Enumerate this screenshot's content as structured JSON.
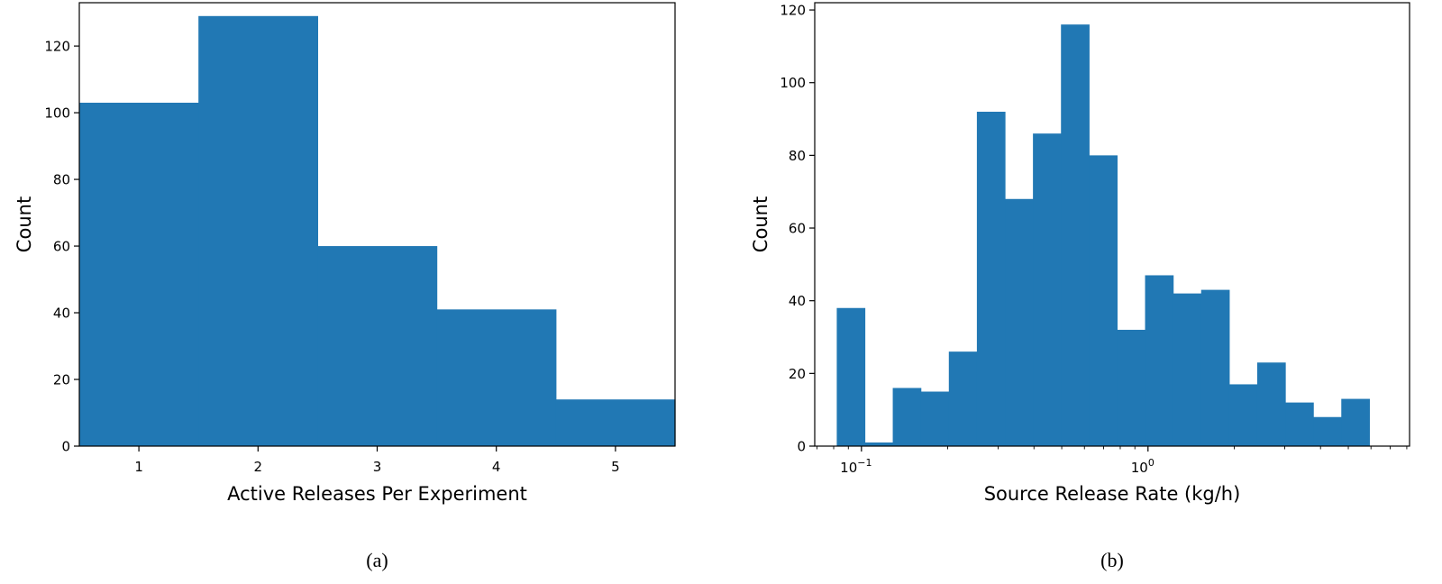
{
  "chart_data": [
    {
      "id": "a",
      "type": "bar",
      "title": "",
      "xlabel": "Active Releases Per Experiment",
      "ylabel": "Count",
      "caption": "(a)",
      "x_scale": "linear",
      "xlim": [
        0.5,
        5.5
      ],
      "ylim": [
        0,
        133
      ],
      "xticks": [
        1,
        2,
        3,
        4,
        5
      ],
      "xtick_labels": [
        "1",
        "2",
        "3",
        "4",
        "5"
      ],
      "yticks": [
        0,
        20,
        40,
        60,
        80,
        100,
        120
      ],
      "ytick_labels": [
        "0",
        "20",
        "40",
        "60",
        "80",
        "100",
        "120"
      ],
      "grid": false,
      "legend": "none",
      "color": "#2178b4",
      "bins": [
        {
          "x0": 0.5,
          "x1": 1.5,
          "value": 103
        },
        {
          "x0": 1.5,
          "x1": 2.5,
          "value": 129
        },
        {
          "x0": 2.5,
          "x1": 3.5,
          "value": 60
        },
        {
          "x0": 3.5,
          "x1": 4.5,
          "value": 41
        },
        {
          "x0": 4.5,
          "x1": 5.5,
          "value": 14
        }
      ]
    },
    {
      "id": "b",
      "type": "bar",
      "title": "",
      "xlabel": "Source Release Rate (kg/h)",
      "ylabel": "Count",
      "caption": "(b)",
      "x_scale": "log",
      "xlim": [
        0.0687,
        8.18
      ],
      "ylim": [
        0,
        122
      ],
      "xticks": [
        0.1,
        1
      ],
      "xtick_base": "10",
      "xtick_exponents": [
        "−1",
        "0"
      ],
      "yticks": [
        0,
        20,
        40,
        60,
        80,
        100,
        120
      ],
      "ytick_labels": [
        "0",
        "20",
        "40",
        "60",
        "80",
        "100",
        "120"
      ],
      "grid": false,
      "legend": "none",
      "color": "#2178b4",
      "bins": [
        {
          "x0": 0.082,
          "x1": 0.1027,
          "value": 38
        },
        {
          "x0": 0.1027,
          "x1": 0.1286,
          "value": 1
        },
        {
          "x0": 0.1286,
          "x1": 0.1611,
          "value": 16
        },
        {
          "x0": 0.1611,
          "x1": 0.2018,
          "value": 15
        },
        {
          "x0": 0.2018,
          "x1": 0.2528,
          "value": 26
        },
        {
          "x0": 0.2528,
          "x1": 0.3167,
          "value": 92
        },
        {
          "x0": 0.3167,
          "x1": 0.3967,
          "value": 68
        },
        {
          "x0": 0.3967,
          "x1": 0.4969,
          "value": 86
        },
        {
          "x0": 0.4969,
          "x1": 0.6224,
          "value": 116
        },
        {
          "x0": 0.6224,
          "x1": 0.7797,
          "value": 80
        },
        {
          "x0": 0.7797,
          "x1": 0.9767,
          "value": 32
        },
        {
          "x0": 0.9767,
          "x1": 1.2234,
          "value": 47
        },
        {
          "x0": 1.2234,
          "x1": 1.5325,
          "value": 42
        },
        {
          "x0": 1.5325,
          "x1": 1.9197,
          "value": 43
        },
        {
          "x0": 1.9197,
          "x1": 2.4047,
          "value": 17
        },
        {
          "x0": 2.4047,
          "x1": 3.0122,
          "value": 23
        },
        {
          "x0": 3.0122,
          "x1": 3.7732,
          "value": 12
        },
        {
          "x0": 3.7732,
          "x1": 4.7265,
          "value": 8
        },
        {
          "x0": 4.7265,
          "x1": 5.9206,
          "value": 13
        }
      ]
    }
  ]
}
